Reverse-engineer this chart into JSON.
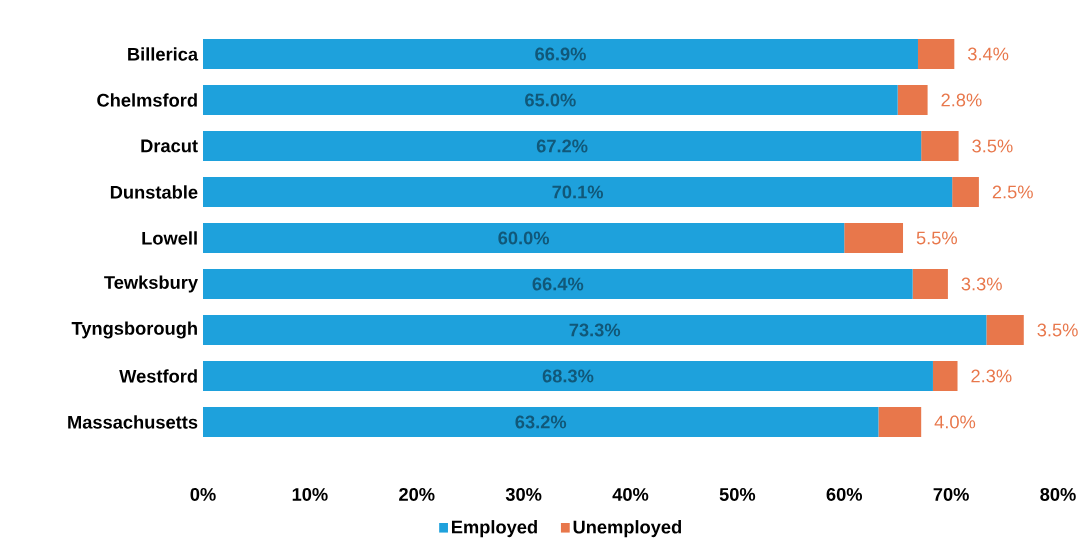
{
  "chart_data": {
    "type": "bar",
    "orientation": "horizontal",
    "stacked": true,
    "categories": [
      "Billerica",
      "Chelmsford",
      "Dracut",
      "Dunstable",
      "Lowell",
      "Tewksbury",
      "Tyngsborough",
      "Westford",
      "Massachusetts"
    ],
    "series": [
      {
        "name": "Employed",
        "color": "#1ea1dc",
        "values": [
          66.9,
          65.0,
          67.2,
          70.1,
          60.0,
          66.4,
          73.3,
          68.3,
          63.2
        ],
        "value_labels": [
          "66.9%",
          "65.0%",
          "67.2%",
          "70.1%",
          "60.0%",
          "66.4%",
          "73.3%",
          "68.3%",
          "63.2%"
        ]
      },
      {
        "name": "Unemployed",
        "color": "#e8774b",
        "values": [
          3.4,
          2.8,
          3.5,
          2.5,
          5.5,
          3.3,
          3.5,
          2.3,
          4.0
        ],
        "value_labels": [
          "3.4%",
          "2.8%",
          "3.5%",
          "2.5%",
          "5.5%",
          "3.3%",
          "3.5%",
          "2.3%",
          "4.0%"
        ]
      }
    ],
    "xlim": [
      0,
      80
    ],
    "xticks": [
      {
        "value": 0,
        "label": "0%"
      },
      {
        "value": 10,
        "label": "10%"
      },
      {
        "value": 20,
        "label": "20%"
      },
      {
        "value": 30,
        "label": "30%"
      },
      {
        "value": 40,
        "label": "40%"
      },
      {
        "value": 50,
        "label": "50%"
      },
      {
        "value": 60,
        "label": "60%"
      },
      {
        "value": 70,
        "label": "70%"
      },
      {
        "value": 80,
        "label": "80%"
      }
    ],
    "legend": "bottom"
  }
}
